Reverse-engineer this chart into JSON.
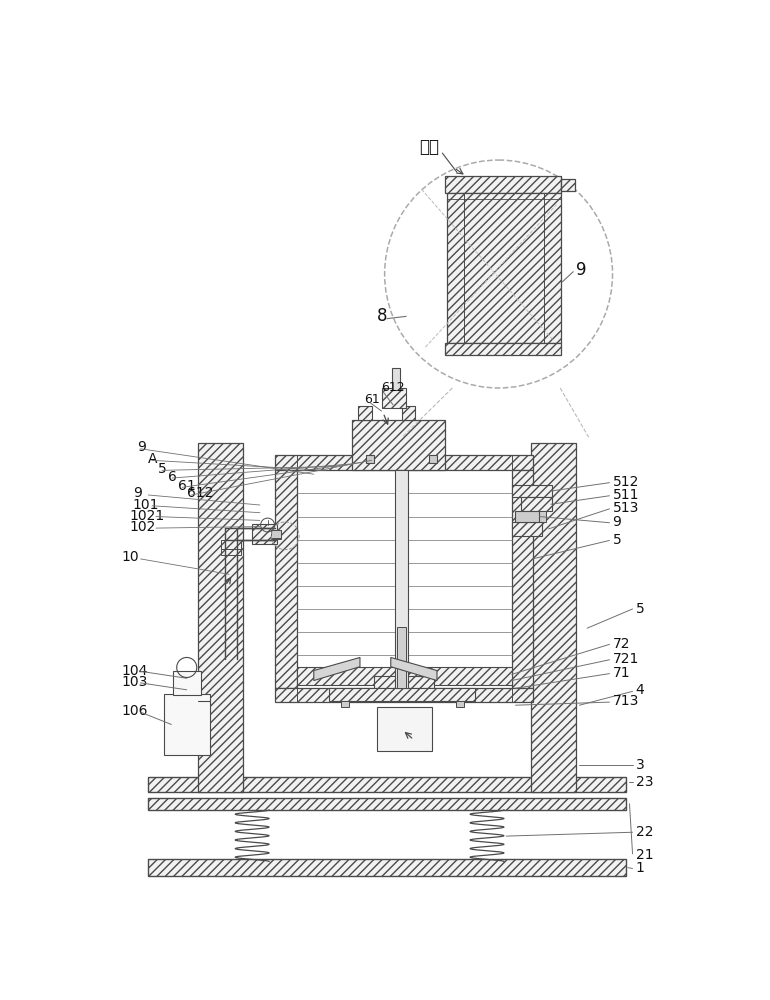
{
  "bg": "#ffffff",
  "lc": "#4a4a4a",
  "lc_thin": "#707070",
  "hatch": "////",
  "hatch_fc": "#f2f2f2",
  "gray_fc": "#cccccc",
  "darkgray_fc": "#aaaaaa"
}
